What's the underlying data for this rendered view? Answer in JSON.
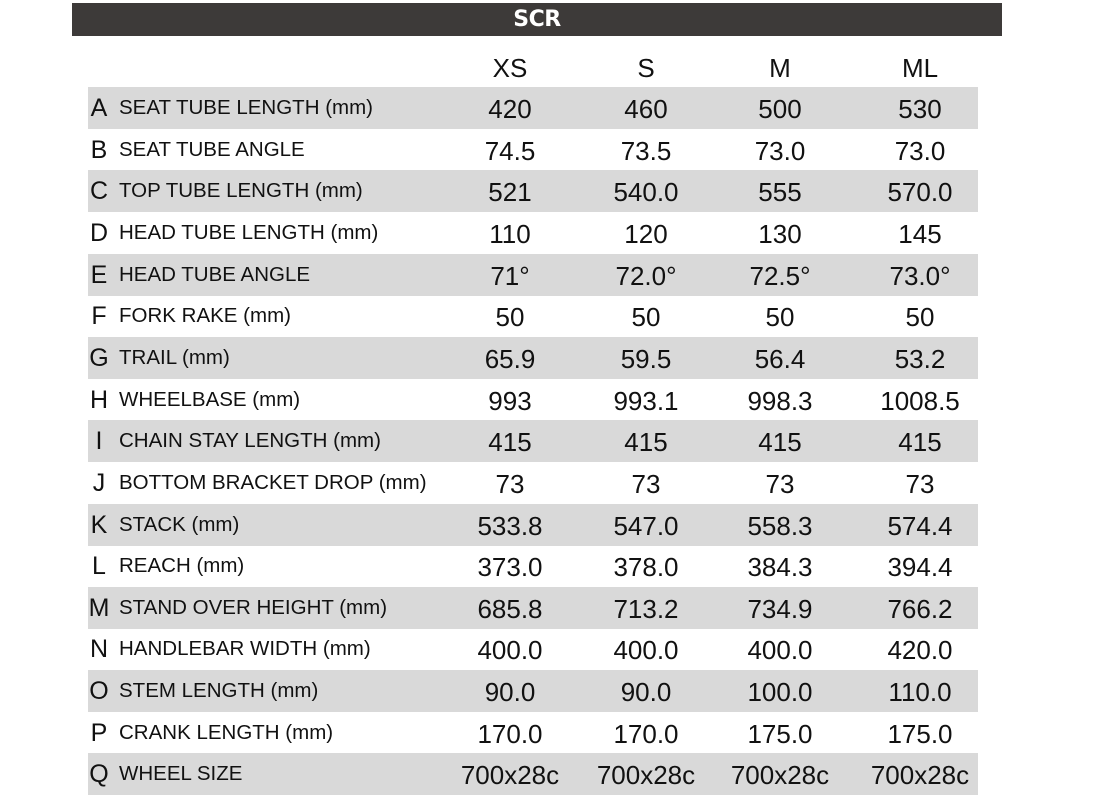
{
  "title": "SCR",
  "sizes": [
    "XS",
    "S",
    "M",
    "ML"
  ],
  "rows": [
    {
      "letter": "A",
      "label": "SEAT TUBE LENGTH (mm)",
      "values": [
        "420",
        "460",
        "500",
        "530"
      ]
    },
    {
      "letter": "B",
      "label": "SEAT TUBE ANGLE",
      "values": [
        "74.5",
        "73.5",
        "73.0",
        "73.0"
      ]
    },
    {
      "letter": "C",
      "label": "TOP TUBE LENGTH (mm)",
      "values": [
        "521",
        "540.0",
        "555",
        "570.0"
      ]
    },
    {
      "letter": "D",
      "label": "HEAD TUBE LENGTH (mm)",
      "values": [
        "110",
        "120",
        "130",
        "145"
      ]
    },
    {
      "letter": "E",
      "label": "HEAD TUBE ANGLE",
      "values": [
        "71°",
        "72.0°",
        "72.5°",
        "73.0°"
      ]
    },
    {
      "letter": "F",
      "label": "FORK RAKE (mm)",
      "values": [
        "50",
        "50",
        "50",
        "50"
      ]
    },
    {
      "letter": "G",
      "label": "TRAIL (mm)",
      "values": [
        "65.9",
        "59.5",
        "56.4",
        "53.2"
      ]
    },
    {
      "letter": "H",
      "label": "WHEELBASE (mm)",
      "values": [
        "993",
        "993.1",
        "998.3",
        "1008.5"
      ]
    },
    {
      "letter": "I",
      "label": "CHAIN STAY LENGTH (mm)",
      "values": [
        "415",
        "415",
        "415",
        "415"
      ]
    },
    {
      "letter": "J",
      "label": "BOTTOM BRACKET DROP (mm)",
      "values": [
        "73",
        "73",
        "73",
        "73"
      ]
    },
    {
      "letter": "K",
      "label": "STACK (mm)",
      "values": [
        "533.8",
        "547.0",
        "558.3",
        "574.4"
      ]
    },
    {
      "letter": "L",
      "label": "REACH (mm)",
      "values": [
        "373.0",
        "378.0",
        "384.3",
        "394.4"
      ]
    },
    {
      "letter": "M",
      "label": "STAND OVER HEIGHT (mm)",
      "values": [
        "685.8",
        "713.2",
        "734.9",
        "766.2"
      ]
    },
    {
      "letter": "N",
      "label": "HANDLEBAR WIDTH (mm)",
      "values": [
        "400.0",
        "400.0",
        "400.0",
        "420.0"
      ]
    },
    {
      "letter": "O",
      "label": "STEM LENGTH (mm)",
      "values": [
        "90.0",
        "90.0",
        "100.0",
        "110.0"
      ]
    },
    {
      "letter": "P",
      "label": "CRANK LENGTH (mm)",
      "values": [
        "170.0",
        "170.0",
        "175.0",
        "175.0"
      ]
    },
    {
      "letter": "Q",
      "label": "WHEEL SIZE",
      "values": [
        "700x28c",
        "700x28c",
        "700x28c",
        "700x28c"
      ]
    }
  ]
}
